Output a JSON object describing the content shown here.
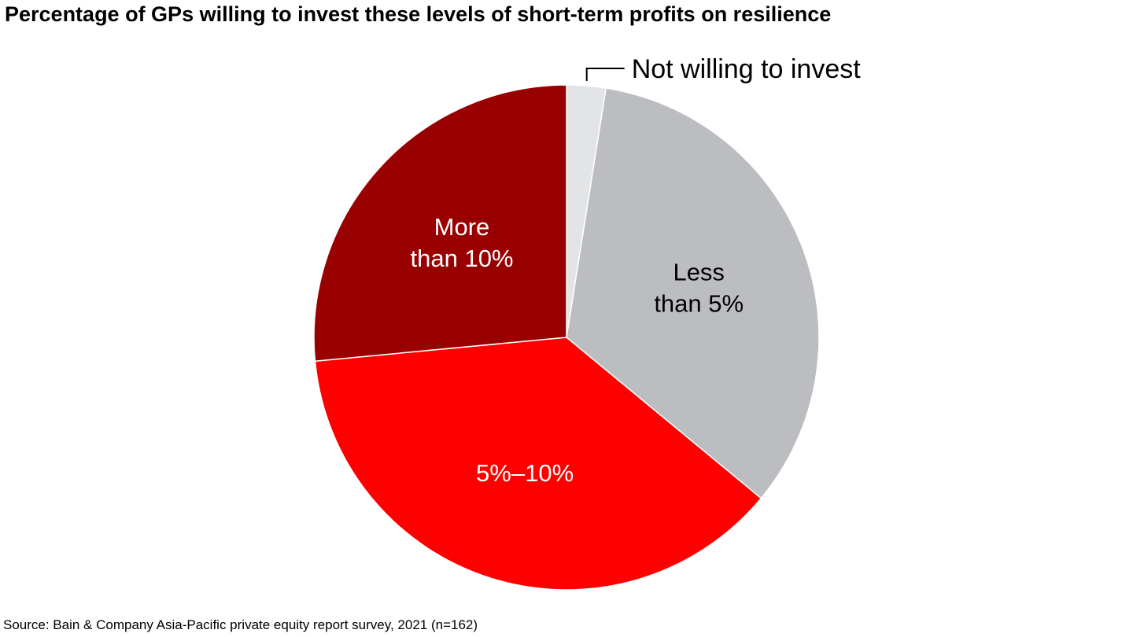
{
  "title": "Percentage of GPs willing to invest these levels of short-term profits on resilience",
  "source": "Source: Bain & Company Asia-Pacific private equity report survey, 2021 (n=162)",
  "chart_data": {
    "type": "pie",
    "title": "Percentage of GPs willing to invest these levels of short-term profits on resilience",
    "slices": [
      {
        "label": "Not willing to invest",
        "label_lines": [
          "Not willing to invest"
        ],
        "value": 2.5,
        "color": "#e3e4e6",
        "text_color": "#000000",
        "label_position": "outside"
      },
      {
        "label": "Less than 5%",
        "label_lines": [
          "Less",
          "than 5%"
        ],
        "value": 33.5,
        "color": "#bcbdc0",
        "text_color": "#000000",
        "label_position": "inside"
      },
      {
        "label": "5%–10%",
        "label_lines": [
          "5%–10%"
        ],
        "value": 37.5,
        "color": "#ff0000",
        "text_color": "#ffffff",
        "label_position": "inside"
      },
      {
        "label": "More than 10%",
        "label_lines": [
          "More",
          "than 10%"
        ],
        "value": 26.5,
        "color": "#990000",
        "text_color": "#ffffff",
        "label_position": "inside"
      }
    ],
    "start_angle": "12 o'clock",
    "direction": "clockwise",
    "legend": "none"
  }
}
